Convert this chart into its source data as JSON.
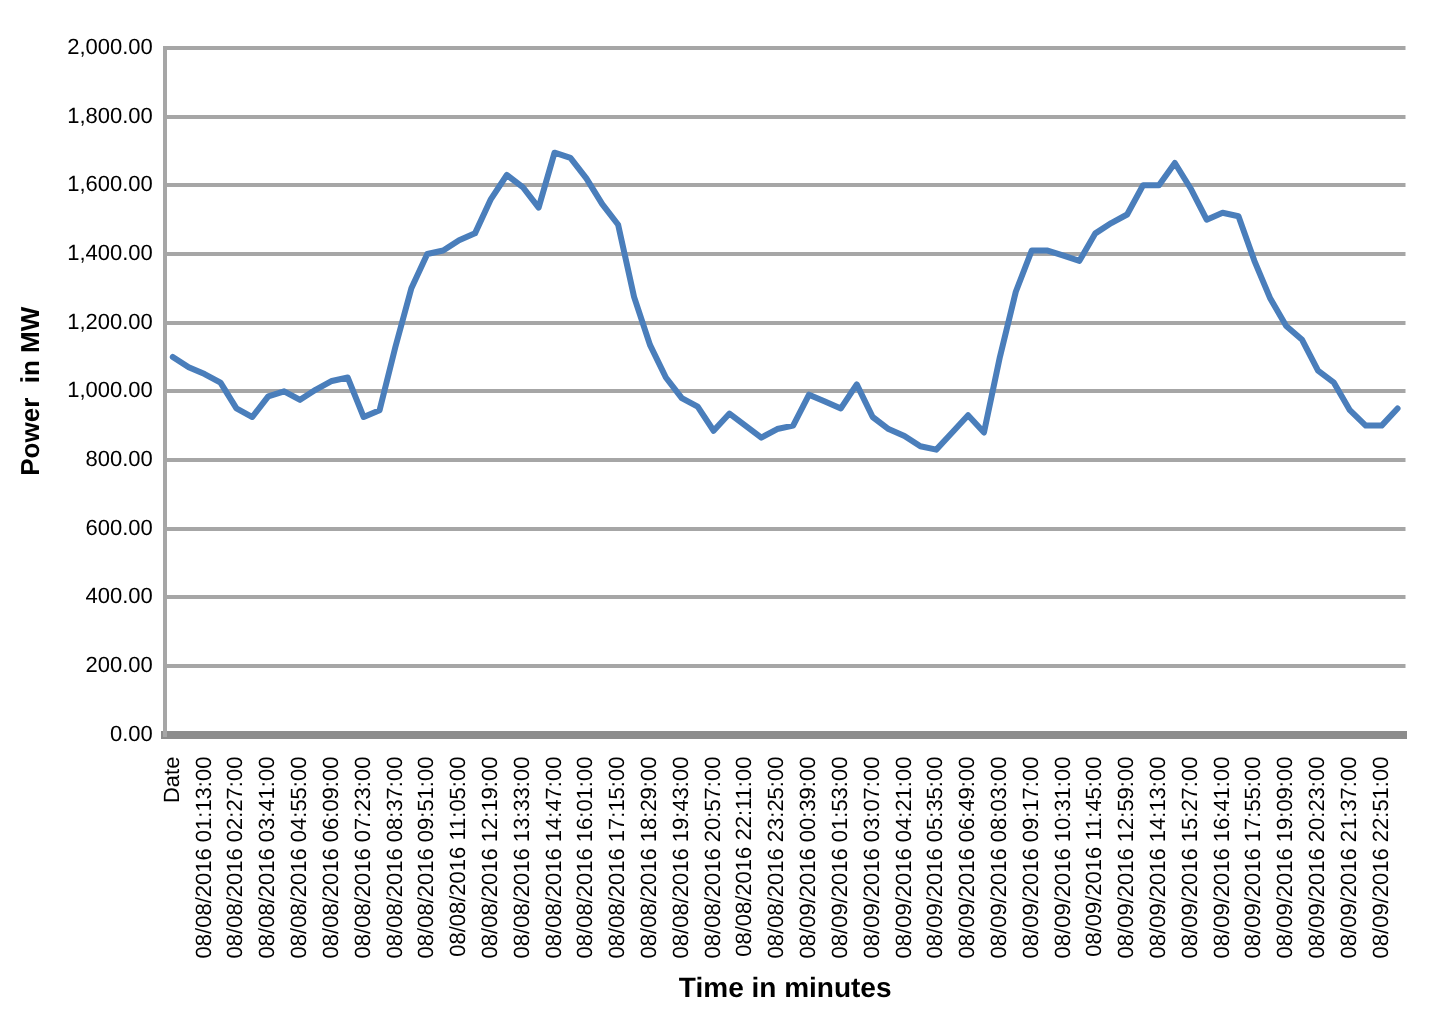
{
  "chart_data": {
    "type": "line",
    "xlabel": "Time in minutes",
    "ylabel": "Power  in MW",
    "categories": [
      "Date",
      null,
      "08/08/2016 01:13:00",
      null,
      "08/08/2016 02:27:00",
      null,
      "08/08/2016 03:41:00",
      null,
      "08/08/2016 04:55:00",
      null,
      "08/08/2016 06:09:00",
      null,
      "08/08/2016 07:23:00",
      null,
      "08/08/2016 08:37:00",
      null,
      "08/08/2016 09:51:00",
      null,
      "08/08/2016 11:05:00",
      null,
      "08/08/2016 12:19:00",
      null,
      "08/08/2016 13:33:00",
      null,
      "08/08/2016 14:47:00",
      null,
      "08/08/2016 16:01:00",
      null,
      "08/08/2016 17:15:00",
      null,
      "08/08/2016 18:29:00",
      null,
      "08/08/2016 19:43:00",
      null,
      "08/08/2016 20:57:00",
      null,
      "08/08/2016 22:11:00",
      null,
      "08/08/2016 23:25:00",
      null,
      "08/09/2016 00:39:00",
      null,
      "08/09/2016 01:53:00",
      null,
      "08/09/2016 03:07:00",
      null,
      "08/09/2016 04:21:00",
      null,
      "08/09/2016 05:35:00",
      null,
      "08/09/2016 06:49:00",
      null,
      "08/09/2016 08:03:00",
      null,
      "08/09/2016 09:17:00",
      null,
      "08/09/2016 10:31:00",
      null,
      "08/09/2016 11:45:00",
      null,
      "08/09/2016 12:59:00",
      null,
      "08/09/2016 14:13:00",
      null,
      "08/09/2016 15:27:00",
      null,
      "08/09/2016 16:41:00",
      null,
      "08/09/2016 17:55:00",
      null,
      "08/09/2016 19:09:00",
      null,
      "08/09/2016 20:23:00",
      null,
      "08/09/2016 21:37:00",
      null,
      "08/09/2016 22:51:00",
      null
    ],
    "series": [
      {
        "color": "#4a7ebb",
        "values": [
          1100,
          1070,
          1050,
          1025,
          950,
          925,
          985,
          1000,
          975,
          1005,
          1030,
          1040,
          925,
          945,
          1130,
          1300,
          1400,
          1410,
          1440,
          1460,
          1560,
          1630,
          1595,
          1535,
          1695,
          1680,
          1620,
          1545,
          1485,
          1275,
          1135,
          1040,
          980,
          955,
          885,
          935,
          900,
          865,
          890,
          900,
          990,
          970,
          950,
          1020,
          925,
          890,
          870,
          840,
          830,
          880,
          930,
          880,
          1100,
          1290,
          1410,
          1410,
          1395,
          1380,
          1460,
          1490,
          1515,
          1600,
          1600,
          1665,
          1590,
          1500,
          1520,
          1510,
          1380,
          1270,
          1190,
          1150,
          1060,
          1025,
          945,
          900,
          900,
          950
        ]
      }
    ],
    "ylim": [
      0,
      2000
    ],
    "yticks": [
      {
        "value": 0,
        "label": "0.00"
      },
      {
        "value": 200,
        "label": "200.00"
      },
      {
        "value": 400,
        "label": "400.00"
      },
      {
        "value": 600,
        "label": "600.00"
      },
      {
        "value": 800,
        "label": "800.00"
      },
      {
        "value": 1000,
        "label": "1,000.00"
      },
      {
        "value": 1200,
        "label": "1,200.00"
      },
      {
        "value": 1400,
        "label": "1,400.00"
      },
      {
        "value": 1600,
        "label": "1,600.00"
      },
      {
        "value": 1800,
        "label": "1,800.00"
      },
      {
        "value": 2000,
        "label": "2,000.00"
      }
    ],
    "grid": "y",
    "legend": false,
    "marker": "none",
    "line_style": "solid"
  }
}
